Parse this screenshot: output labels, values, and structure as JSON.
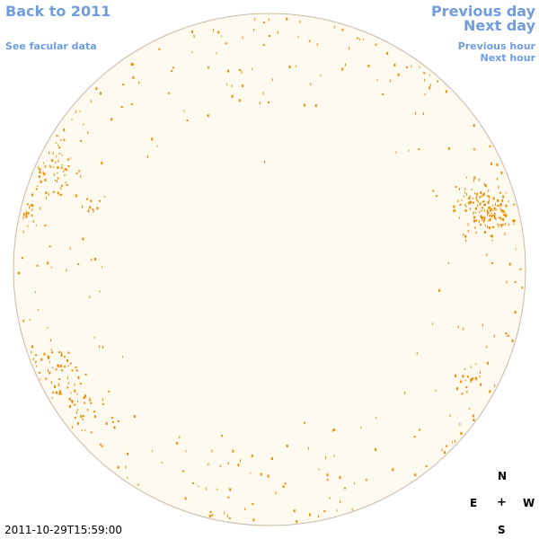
{
  "nav": {
    "back": "Back to 2011",
    "facular": "See facular data",
    "previous_day": "Previous day",
    "next_day": "Next day",
    "previous_hour": "Previous hour",
    "next_hour": "Next hour"
  },
  "compass": {
    "north": "N",
    "east": "E",
    "center": "+",
    "west": "W",
    "south": "S"
  },
  "timestamp": "2011-10-29T15:59:00",
  "colors": {
    "link": "#6f9de0",
    "disk_fill": "#fefaf0",
    "disk_outline": "#c8b9a6",
    "facula": "#f08c00"
  }
}
